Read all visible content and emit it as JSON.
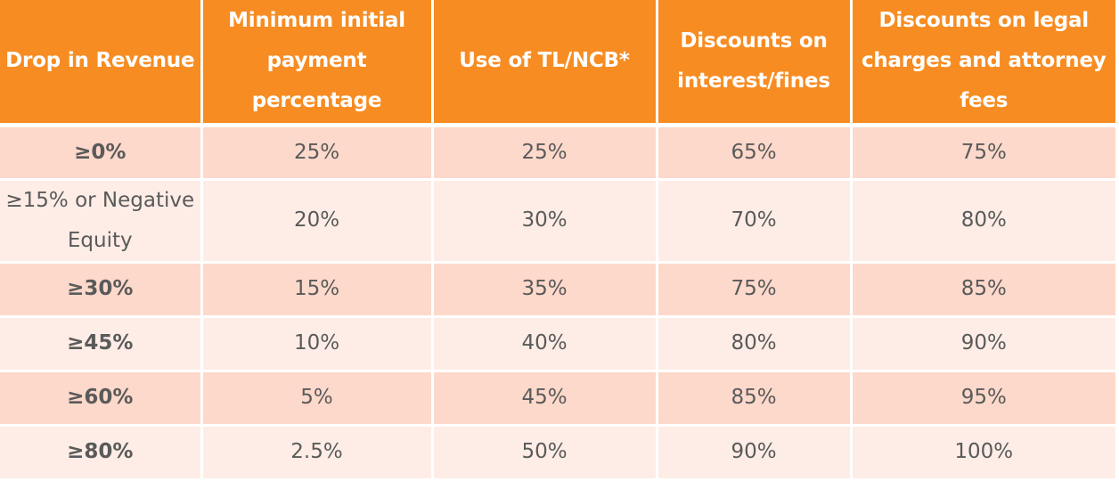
{
  "table": {
    "headers": [
      "Drop in Revenue",
      "Minimum initial payment percentage",
      "Use of TL/NCB*",
      "Discounts on interest/fines",
      "Discounts on legal charges and attorney fees"
    ],
    "rows": [
      [
        "≥0%",
        "25%",
        "25%",
        "65%",
        "75%"
      ],
      [
        "≥15% or Negative Equity",
        "20%",
        "30%",
        "70%",
        "80%"
      ],
      [
        "≥30%",
        "15%",
        "35%",
        "75%",
        "85%"
      ],
      [
        "≥45%",
        "10%",
        "40%",
        "80%",
        "90%"
      ],
      [
        "≥60%",
        "5%",
        "45%",
        "85%",
        "95%"
      ],
      [
        "≥80%",
        "2.5%",
        "50%",
        "90%",
        "100%"
      ]
    ]
  },
  "colors": {
    "header_bg": "#f78c22",
    "row_odd_bg": "#fdd9cb",
    "row_even_bg": "#feede6",
    "text": "#5a5a5a"
  }
}
